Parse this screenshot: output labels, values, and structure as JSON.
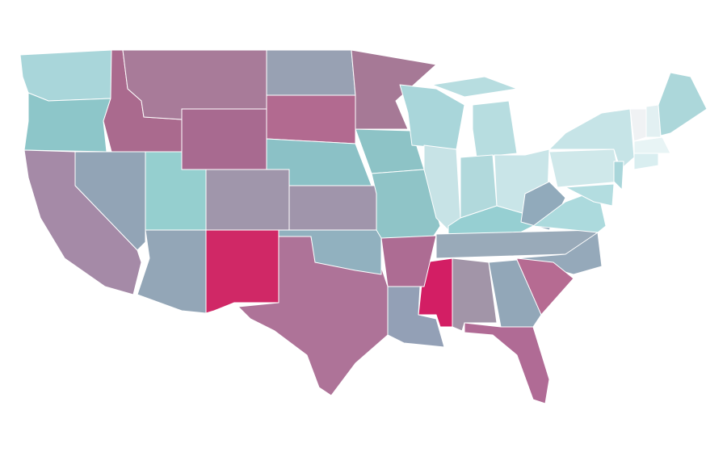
{
  "map": {
    "fills": [
      "#a9d6da",
      "#8dc6c9",
      "#aa6a8e",
      "#a87b99",
      "#a86a90",
      "#98a1b3",
      "#b26a90",
      "#8bc1c6",
      "#a095ab",
      "#a67996",
      "#8dc3c6",
      "#8fc4c7",
      "#a9d6da",
      "#c7e3e6",
      "#b7dde0",
      "#b7dde0",
      "#b1d9dc",
      "#c9e5e8",
      "#96cfd2",
      "#99aab9",
      "#91aabb",
      "#acdadd",
      "#95a9ba",
      "#b66b92",
      "#92a7b8",
      "#a295a8",
      "#d31e64",
      "#93a0b6",
      "#ad6c93",
      "#b06b95",
      "#ae7398",
      "#91b1bf",
      "#d02866",
      "#93a6b7",
      "#a096ab",
      "#95cfcf",
      "#92a4b6",
      "#a58aa7",
      "#cfe8ea",
      "#c6e4e7",
      "#a9d6da",
      "#b3dde0",
      "#f0f2f4",
      "#e2f0f2",
      "#acd7da",
      "#e8f4f5",
      "#d9eef0"
    ]
  }
}
